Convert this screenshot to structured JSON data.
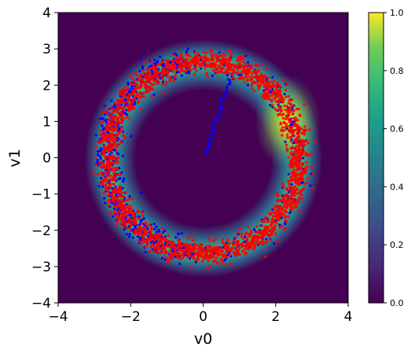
{
  "chart_data": {
    "type": "scatter",
    "title": "",
    "xlabel": "v0",
    "ylabel": "v1",
    "xlim": [
      -4,
      4
    ],
    "ylim": [
      -4,
      4
    ],
    "x_ticks": [
      -4,
      -2,
      0,
      2,
      4
    ],
    "x_tick_labels": [
      "−4",
      "−2",
      "0",
      "2",
      "4"
    ],
    "y_ticks": [
      -4,
      -3,
      -2,
      -1,
      0,
      1,
      2,
      3,
      4
    ],
    "y_tick_labels": [
      "−4",
      "−3",
      "−2",
      "−1",
      "0",
      "1",
      "2",
      "3",
      "4"
    ],
    "grid": false,
    "legend": "none",
    "background_density": {
      "colormap": "viridis",
      "shape": "ring",
      "center": [
        0.0,
        0.0
      ],
      "radius": 2.65,
      "width_sd": 0.2,
      "peak_location": [
        2.35,
        0.9
      ]
    },
    "colorbar": {
      "range": [
        0.0,
        1.0
      ],
      "ticks": [
        0.0,
        0.2,
        0.4,
        0.6,
        0.8,
        1.0
      ],
      "tick_labels": [
        "0.0",
        "0.2",
        "0.4",
        "0.6",
        "0.8",
        "1.0"
      ]
    },
    "series": [
      {
        "color": "#0000ff",
        "description_points": "ring samples, heavier on the left side, plus a short trail from the center to the upper ring",
        "ring_center": [
          0.0,
          0.0
        ],
        "ring_radius": 2.65,
        "trail_points": [
          [
            0.1,
            0.1
          ],
          [
            0.2,
            0.5
          ],
          [
            0.35,
            1.0
          ],
          [
            0.5,
            1.5
          ],
          [
            0.7,
            2.0
          ],
          [
            0.85,
            2.4
          ]
        ]
      },
      {
        "color": "#ff0000",
        "ring_center": [
          0.0,
          0.0
        ],
        "ring_radius": 2.65,
        "ring_width_sd": 0.15
      }
    ]
  }
}
